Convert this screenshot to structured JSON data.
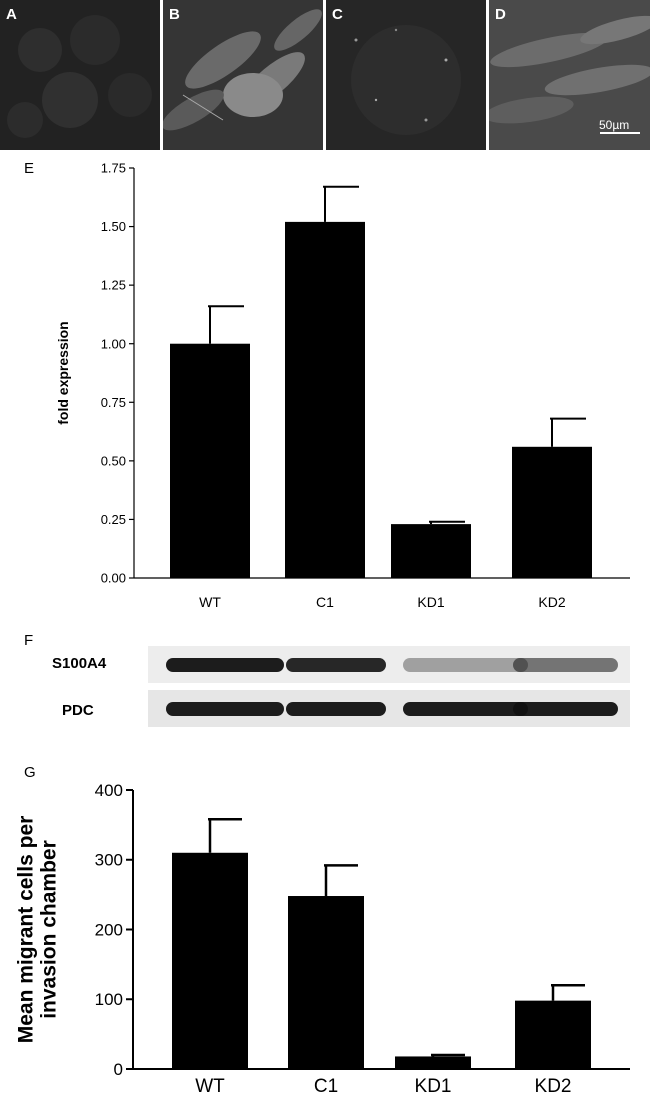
{
  "panels": {
    "A": "A",
    "B": "B",
    "C": "C",
    "D": "D",
    "E": "E",
    "F": "F",
    "G": "G"
  },
  "scale_bar": "50µm",
  "blot": {
    "labels": [
      "S100A4",
      "PDC"
    ],
    "s100a4_intensity": [
      0.95,
      0.9,
      0.35,
      0.55
    ],
    "pdc_intensity": [
      0.95,
      0.95,
      0.95,
      0.95
    ]
  },
  "chart_data": [
    {
      "type": "bar",
      "title": "",
      "xlabel": "",
      "ylabel": "fold expression",
      "categories": [
        "WT",
        "C1",
        "KD1",
        "KD2"
      ],
      "values": [
        1.0,
        1.52,
        0.23,
        0.56
      ],
      "errors": [
        0.16,
        0.15,
        0.01,
        0.12
      ],
      "ylim": [
        0,
        1.75
      ],
      "yticks": [
        "0.00",
        "0.25",
        "0.50",
        "0.75",
        "1.00",
        "1.25",
        "1.50",
        "1.75"
      ],
      "grid": false
    },
    {
      "type": "bar",
      "title": "",
      "xlabel": "",
      "ylabel": "Mean migrant cells per invasion chamber",
      "categories": [
        "WT",
        "C1",
        "KD1",
        "KD2"
      ],
      "values": [
        310,
        248,
        18,
        98
      ],
      "errors": [
        48,
        44,
        2,
        22
      ],
      "ylim": [
        0,
        400
      ],
      "yticks": [
        "0",
        "100",
        "200",
        "300",
        "400"
      ],
      "grid": false
    }
  ]
}
